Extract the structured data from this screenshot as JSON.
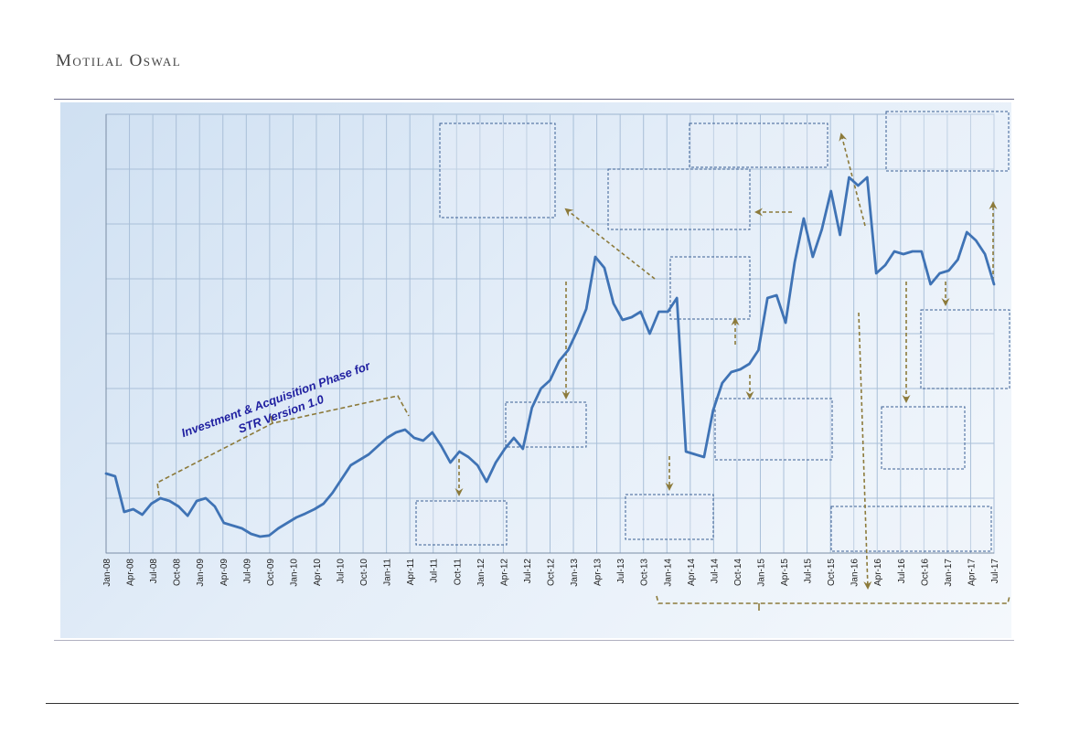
{
  "header": {
    "brand": "Motilal Oswal"
  },
  "chart_data": {
    "type": "line",
    "title": "",
    "xlabel": "",
    "ylabel": "",
    "x_ticks": [
      "Jan-08",
      "Apr-08",
      "Jul-08",
      "Oct-08",
      "Jan-09",
      "Apr-09",
      "Jul-09",
      "Oct-09",
      "Jan-10",
      "Apr-10",
      "Jul-10",
      "Oct-10",
      "Jan-11",
      "Apr-11",
      "Jul-11",
      "Oct-11",
      "Jan-12",
      "Apr-12",
      "Jul-12",
      "Oct-12",
      "Jan-13",
      "Apr-13",
      "Jul-13",
      "Oct-13",
      "Jan-14",
      "Apr-14",
      "Jul-14",
      "Oct-14",
      "Jan-15",
      "Apr-15",
      "Jul-15",
      "Oct-15",
      "Jan-16",
      "Apr-16",
      "Jul-16",
      "Oct-16",
      "Jan-17",
      "Apr-17",
      "Jul-17"
    ],
    "y_range": [
      0,
      8
    ],
    "y_gridlines": 8,
    "grid": true,
    "series": [
      {
        "values": [
          1.45,
          1.4,
          0.75,
          0.8,
          0.7,
          0.9,
          1.0,
          0.95,
          0.85,
          0.68,
          0.95,
          1.0,
          0.85,
          0.55,
          0.5,
          0.45,
          0.35,
          0.3,
          0.32,
          0.45,
          0.55,
          0.65,
          0.72,
          0.8,
          0.9,
          1.1,
          1.35,
          1.6,
          1.7,
          1.8,
          1.95,
          2.1,
          2.2,
          2.25,
          2.1,
          2.05,
          2.2,
          1.95,
          1.65,
          1.85,
          1.75,
          1.6,
          1.3,
          1.65,
          1.9,
          2.1,
          1.9,
          2.65,
          3.0,
          3.15,
          3.5,
          3.7,
          4.05,
          4.45,
          5.4,
          5.2,
          4.55,
          4.25,
          4.3,
          4.4,
          4.0,
          4.4,
          4.4,
          4.65,
          1.85,
          1.8,
          1.75,
          2.6,
          3.1,
          3.3,
          3.35,
          3.45,
          3.7,
          4.65,
          4.7,
          4.2,
          5.3,
          6.1,
          5.4,
          5.9,
          6.6,
          5.8,
          6.85,
          6.7,
          6.85,
          5.1,
          5.25,
          5.5,
          5.45,
          5.5,
          5.5,
          4.9,
          5.1,
          5.15,
          5.35,
          5.85,
          5.7,
          5.45,
          4.9
        ]
      }
    ],
    "annotations": {
      "phase_label_line1": "Investment & Acquisition Phase for",
      "phase_label_line2": "STR Version 1.0"
    }
  }
}
